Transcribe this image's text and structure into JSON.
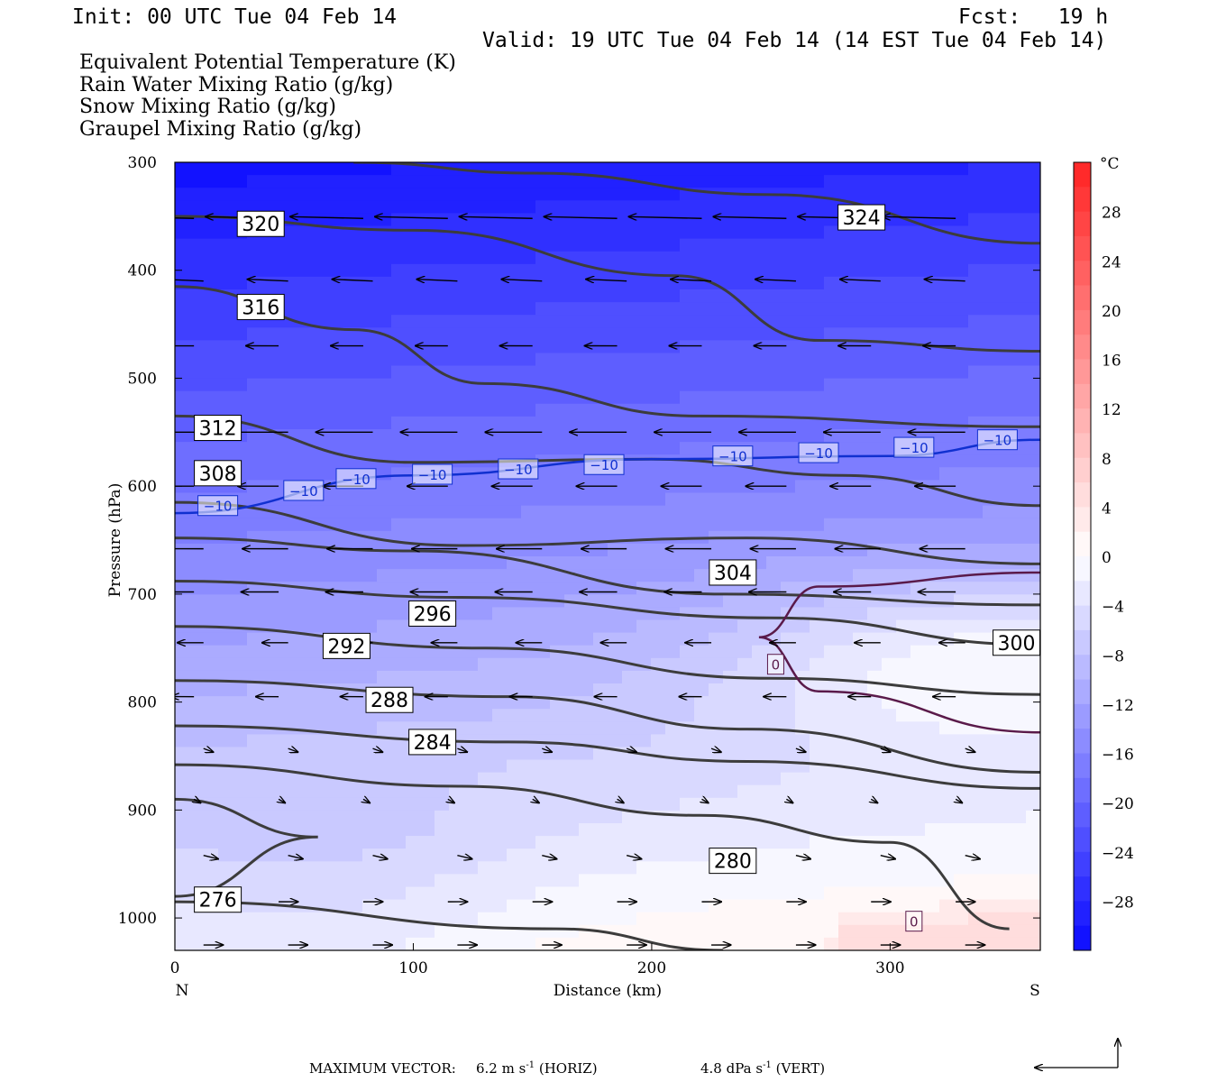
{
  "header": {
    "init": "Init: 00 UTC Tue 04 Feb 14",
    "fcst": "Fcst:   19 h",
    "valid": "Valid: 19 UTC Tue 04 Feb 14 (14 EST Tue 04 Feb 14)"
  },
  "legend": [
    {
      "label": "Equivalent Potential Temperature (K)",
      "color": "#555555"
    },
    {
      "label": "Rain Water Mixing Ratio (g/kg)",
      "color": "#1a8a1a"
    },
    {
      "label": "Snow Mixing Ratio (g/kg)",
      "color": "#f08c4a"
    },
    {
      "label": "Graupel Mixing Ratio (g/kg)",
      "color": "#f08ae8"
    }
  ],
  "footer": {
    "max_vector_label": "MAXIMUM VECTOR:",
    "horiz": "6.2 m s",
    "horiz_unit": "(HORIZ)",
    "vert": "4.8 dPa s",
    "vert_unit": "(VERT)",
    "exp": "-1"
  },
  "chart_data": {
    "type": "contour-cross-section",
    "xlabel": "Distance (km)",
    "ylabel": "Pressure (hPa)",
    "xlim": [
      0,
      363
    ],
    "ylim": [
      1030,
      300
    ],
    "x_ticks": [
      "0",
      "100",
      "200",
      "300"
    ],
    "x_tick_values": [
      0,
      100,
      200,
      300
    ],
    "y_ticks": [
      "300",
      "400",
      "500",
      "600",
      "700",
      "800",
      "900",
      "1000"
    ],
    "y_tick_values": [
      300,
      400,
      500,
      600,
      700,
      800,
      900,
      1000
    ],
    "x_ends": {
      "left": "N",
      "right": "S"
    },
    "colorbar": {
      "unit": "°C",
      "labels": [
        "28",
        "24",
        "20",
        "16",
        "12",
        "8",
        "4",
        "0",
        "−4",
        "−8",
        "−12",
        "−16",
        "−20",
        "−24",
        "−28"
      ],
      "values": [
        28,
        24,
        20,
        16,
        12,
        8,
        4,
        0,
        -4,
        -8,
        -12,
        -16,
        -20,
        -24,
        -28
      ],
      "range": [
        -32,
        32
      ],
      "levels": 32
    },
    "theta_e_contours": [
      {
        "label": "324",
        "points": [
          [
            75,
            300
          ],
          [
            150,
            310
          ],
          [
            250,
            330
          ],
          [
            363,
            375
          ]
        ],
        "label_at": [
          288,
          351
        ]
      },
      {
        "label": "320",
        "points": [
          [
            0,
            350
          ],
          [
            100,
            363
          ],
          [
            210,
            405
          ],
          [
            270,
            465
          ],
          [
            363,
            475
          ]
        ],
        "label_at": [
          36,
          357
        ]
      },
      {
        "label": "316",
        "points": [
          [
            0,
            415
          ],
          [
            75,
            455
          ],
          [
            130,
            505
          ],
          [
            220,
            535
          ],
          [
            363,
            545
          ]
        ],
        "label_at": [
          36,
          434
        ]
      },
      {
        "label": "312",
        "points": [
          [
            0,
            535
          ],
          [
            100,
            578
          ],
          [
            200,
            575
          ],
          [
            280,
            590
          ],
          [
            363,
            618
          ]
        ],
        "label_at": [
          18,
          546
        ]
      },
      {
        "label": "308",
        "points": [
          [
            0,
            615
          ],
          [
            120,
            655
          ],
          [
            240,
            648
          ],
          [
            363,
            672
          ]
        ],
        "label_at": [
          18,
          588
        ]
      },
      {
        "label": "304",
        "points": [
          [
            0,
            648
          ],
          [
            100,
            660
          ],
          [
            230,
            700
          ],
          [
            363,
            710
          ]
        ],
        "label_at": [
          234,
          680
        ]
      },
      {
        "label": "300",
        "points": [
          [
            0,
            688
          ],
          [
            120,
            703
          ],
          [
            250,
            722
          ],
          [
            363,
            747
          ]
        ],
        "label_at": [
          353,
          745
        ]
      },
      {
        "label": "296",
        "points": [
          [
            0,
            730
          ],
          [
            130,
            750
          ],
          [
            250,
            778
          ],
          [
            363,
            793
          ]
        ],
        "label_at": [
          108,
          718
        ]
      },
      {
        "label": "292",
        "points": [
          [
            0,
            780
          ],
          [
            140,
            795
          ],
          [
            240,
            825
          ],
          [
            363,
            865
          ]
        ],
        "label_at": [
          72,
          748
        ]
      },
      {
        "label": "288",
        "points": [
          [
            0,
            822
          ],
          [
            140,
            837
          ],
          [
            240,
            855
          ],
          [
            363,
            880
          ]
        ],
        "label_at": [
          90,
          798
        ]
      },
      {
        "label": "284",
        "points": [
          [
            0,
            858
          ],
          [
            120,
            878
          ],
          [
            220,
            905
          ],
          [
            300,
            930
          ],
          [
            350,
            1010
          ]
        ],
        "label_at": [
          108,
          837
        ]
      },
      {
        "label": "280",
        "points": [
          [
            0,
            890
          ],
          [
            60,
            925
          ],
          [
            0,
            980
          ]
        ],
        "label_at": [
          234,
          947
        ]
      },
      {
        "label": "276",
        "points": [
          [
            0,
            985
          ],
          [
            160,
            1010
          ],
          [
            230,
            1030
          ]
        ],
        "label_at": [
          18,
          983
        ]
      }
    ],
    "isotherms": [
      {
        "label": "−10",
        "value": -10,
        "points": [
          [
            0,
            625
          ],
          [
            100,
            590
          ],
          [
            200,
            575
          ],
          [
            300,
            572
          ],
          [
            363,
            557
          ]
        ]
      },
      {
        "label": "0",
        "value": 0,
        "points": [
          [
            363,
            680
          ],
          [
            270,
            693
          ],
          [
            245,
            740
          ],
          [
            270,
            790
          ],
          [
            363,
            828
          ]
        ]
      }
    ],
    "isotherm_labels": [
      {
        "text": "−10",
        "at": [
          18,
          618
        ]
      },
      {
        "text": "−10",
        "at": [
          54,
          604
        ]
      },
      {
        "text": "−10",
        "at": [
          76,
          593
        ]
      },
      {
        "text": "−10",
        "at": [
          108,
          589
        ]
      },
      {
        "text": "−10",
        "at": [
          144,
          584
        ]
      },
      {
        "text": "−10",
        "at": [
          180,
          580
        ]
      },
      {
        "text": "−10",
        "at": [
          234,
          572
        ]
      },
      {
        "text": "−10",
        "at": [
          270,
          569
        ]
      },
      {
        "text": "−10",
        "at": [
          310,
          564
        ]
      },
      {
        "text": "−10",
        "at": [
          345,
          557
        ]
      },
      {
        "text": "0",
        "at": [
          252,
          765
        ]
      },
      {
        "text": "0",
        "at": [
          310,
          1003
        ]
      }
    ],
    "wind_rows": [
      {
        "p": 352,
        "u": -4.5
      },
      {
        "p": 410,
        "u": -2.5
      },
      {
        "p": 470,
        "u": -2.0
      },
      {
        "p": 550,
        "u": -3.5
      },
      {
        "p": 600,
        "u": -2.5
      },
      {
        "p": 658,
        "u": -2.8
      },
      {
        "p": 698,
        "u": -2.3
      },
      {
        "p": 745,
        "u": -1.6
      },
      {
        "p": 795,
        "u": -1.4
      },
      {
        "p": 843,
        "u": 0.6
      },
      {
        "p": 890,
        "u": 0.4
      },
      {
        "p": 942,
        "u": 0.9
      },
      {
        "p": 985,
        "u": 1.2
      },
      {
        "p": 1025,
        "u": 1.2
      }
    ]
  }
}
